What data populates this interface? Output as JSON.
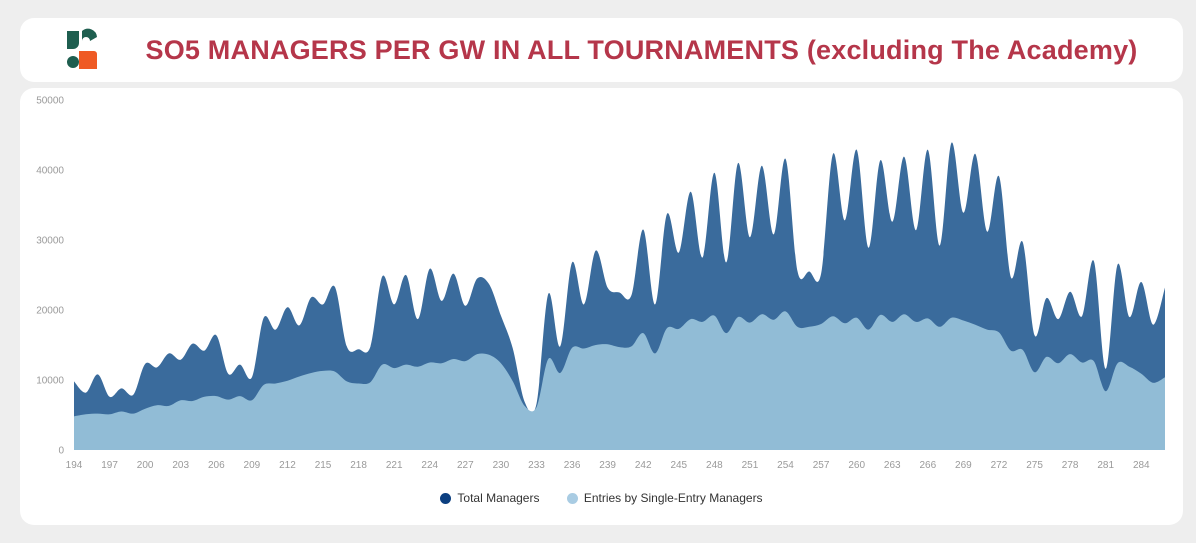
{
  "header": {
    "title": "SO5 MANAGERS PER GW IN ALL TOURNAMENTS (excluding The Academy)",
    "logo_icon": "sorare-s-logo-icon",
    "logo_colors": [
      "#1e5e4f",
      "#ef5a24"
    ]
  },
  "chart_data": {
    "type": "area",
    "title": "SO5 MANAGERS PER GW IN ALL TOURNAMENTS (excluding The Academy)",
    "xlabel": "",
    "ylabel": "",
    "x_start": 194,
    "x_end": 286,
    "xticks": [
      194,
      197,
      200,
      203,
      206,
      209,
      212,
      215,
      218,
      221,
      224,
      227,
      230,
      233,
      236,
      239,
      242,
      245,
      248,
      251,
      254,
      257,
      260,
      263,
      266,
      269,
      272,
      275,
      278,
      281,
      284
    ],
    "yticks": [
      0,
      10000,
      20000,
      30000,
      40000,
      50000
    ],
    "ylim": [
      0,
      50000
    ],
    "grid": false,
    "legend_position": "bottom",
    "series": [
      {
        "name": "Total Managers",
        "color": "#3a6b9c",
        "legend_color": "#0c3f80",
        "values": [
          9800,
          8200,
          10800,
          7600,
          8800,
          7900,
          12300,
          11800,
          13800,
          12900,
          15200,
          14200,
          16400,
          10900,
          12200,
          10400,
          18900,
          17200,
          20400,
          17800,
          21800,
          20800,
          23300,
          14800,
          14400,
          14800,
          24800,
          20800,
          25000,
          18700,
          25900,
          21300,
          25200,
          20600,
          24500,
          23700,
          19200,
          14500,
          6900,
          6600,
          22300,
          14800,
          26800,
          20800,
          28500,
          23200,
          22500,
          22100,
          31500,
          20800,
          33700,
          28200,
          36900,
          27500,
          39600,
          26800,
          41000,
          30400,
          40600,
          30800,
          41600,
          25600,
          25500,
          25200,
          42300,
          32800,
          42900,
          28900,
          41400,
          32600,
          41900,
          31400,
          42900,
          29200,
          43900,
          33900,
          42300,
          31200,
          39100,
          24700,
          29700,
          16400,
          21700,
          18700,
          22600,
          19100,
          27000,
          11600,
          26500,
          19000,
          24000,
          17900,
          23200
        ]
      },
      {
        "name": "Entries by Single-Entry Managers",
        "color": "#91bcd6",
        "legend_color": "#a9cce3",
        "values": [
          4800,
          5100,
          5200,
          5100,
          5500,
          5200,
          5900,
          6400,
          6300,
          7100,
          7000,
          7600,
          7700,
          7200,
          7700,
          7100,
          9300,
          9500,
          9900,
          10500,
          11000,
          11300,
          11200,
          9800,
          9500,
          9700,
          12200,
          11700,
          12200,
          11900,
          12500,
          12400,
          13000,
          12700,
          13700,
          13600,
          12400,
          9800,
          6300,
          6100,
          13000,
          11000,
          14600,
          14500,
          15000,
          15100,
          14700,
          14800,
          16700,
          13800,
          17400,
          17300,
          18700,
          18300,
          19200,
          16700,
          19000,
          18200,
          19400,
          18600,
          19800,
          17600,
          17600,
          18000,
          19100,
          18100,
          18900,
          17200,
          19300,
          18300,
          19400,
          18300,
          18800,
          17600,
          18900,
          18500,
          17900,
          17200,
          16800,
          14200,
          14300,
          11100,
          13300,
          12400,
          13700,
          12500,
          12700,
          8400,
          12400,
          11900,
          10900,
          9600,
          10400
        ]
      }
    ]
  }
}
